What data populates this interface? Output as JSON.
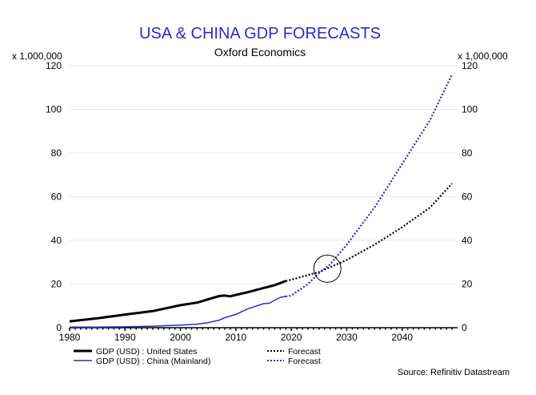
{
  "chart_data": {
    "type": "line",
    "title": "USA & CHINA GDP FORECASTS",
    "subtitle": "Oxford Economics",
    "y_unit_left": "x 1,000,000",
    "y_unit_right": "x 1,000,000",
    "source": "Source: Refinitiv Datastream",
    "xlim": [
      1980,
      2050
    ],
    "ylim": [
      0,
      120
    ],
    "x_ticks": [
      "1980",
      "1990",
      "2000",
      "2010",
      "2020",
      "2030",
      "2040"
    ],
    "y_ticks": [
      "0",
      "20",
      "40",
      "60",
      "80",
      "100",
      "120"
    ],
    "grid": true,
    "legend_position": "bottom",
    "colors": {
      "title": "#2a2ad0",
      "us": "#000000",
      "china": "#2a2ad0"
    },
    "series": [
      {
        "name": "GDP (USD) : United States",
        "style": "solid",
        "color": "#000000",
        "x": [
          1980,
          1985,
          1990,
          1995,
          2000,
          2003,
          2005,
          2007,
          2008,
          2009,
          2010,
          2012,
          2015,
          2017,
          2019
        ],
        "y": [
          2.9,
          4.3,
          6.0,
          7.6,
          10.3,
          11.5,
          13.0,
          14.5,
          14.7,
          14.4,
          15.0,
          16.2,
          18.2,
          19.5,
          21.4
        ]
      },
      {
        "name": "Forecast",
        "style": "dotted",
        "color": "#000000",
        "x": [
          2019,
          2020,
          2025,
          2030,
          2035,
          2040,
          2045,
          2049
        ],
        "y": [
          21.4,
          22.0,
          25.5,
          31,
          38,
          46,
          55,
          66
        ]
      },
      {
        "name": "GDP (USD) : China (Mainland)",
        "style": "solid",
        "color": "#2a2ad0",
        "x": [
          1980,
          1985,
          1990,
          1995,
          2000,
          2003,
          2005,
          2007,
          2008,
          2010,
          2012,
          2015,
          2016,
          2018,
          2019
        ],
        "y": [
          0.3,
          0.3,
          0.4,
          0.7,
          1.2,
          1.6,
          2.3,
          3.5,
          4.6,
          6.1,
          8.5,
          11.0,
          11.2,
          13.9,
          14.3
        ]
      },
      {
        "name": "Forecast",
        "style": "dotted",
        "color": "#2a2ad0",
        "x": [
          2019,
          2020,
          2023,
          2025,
          2027,
          2030,
          2035,
          2040,
          2045,
          2049
        ],
        "y": [
          14.3,
          14.7,
          20,
          25,
          29,
          38,
          55,
          75,
          95,
          116
        ]
      }
    ],
    "annotations": [
      {
        "type": "circle",
        "x": 2026.5,
        "y": 27
      }
    ]
  }
}
